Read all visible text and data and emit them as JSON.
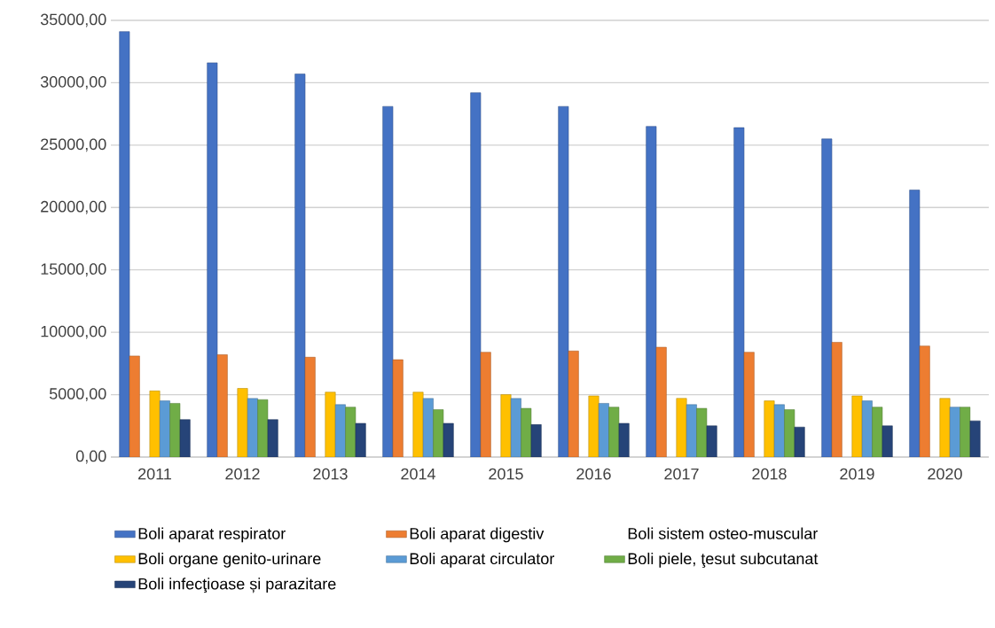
{
  "chart_data": {
    "type": "bar",
    "categories": [
      "2011",
      "2012",
      "2013",
      "2014",
      "2015",
      "2016",
      "2017",
      "2018",
      "2019",
      "2020"
    ],
    "series": [
      {
        "name": "Boli aparat respirator",
        "color": "#4472c4",
        "values": [
          34100,
          31600,
          30700,
          28100,
          29200,
          28100,
          26500,
          26400,
          25500,
          21400
        ]
      },
      {
        "name": "Boli aparat  digestiv",
        "color": "#ed7d31",
        "values": [
          8100,
          8200,
          8000,
          7800,
          8400,
          8500,
          8800,
          8400,
          9200,
          8900
        ]
      },
      {
        "name": "Boli sistem osteo-muscular",
        "values": [
          null,
          null,
          null,
          null,
          null,
          null,
          null,
          null,
          null,
          null
        ]
      },
      {
        "name": "Boli organe genito-urinare",
        "color": "#ffc000",
        "values": [
          5300,
          5500,
          5200,
          5200,
          5000,
          4900,
          4700,
          4500,
          4900,
          4700
        ]
      },
      {
        "name": "Boli aparat circulator",
        "color": "#5b9bd5",
        "values": [
          4500,
          4700,
          4200,
          4700,
          4700,
          4300,
          4200,
          4200,
          4500,
          4000
        ]
      },
      {
        "name": "Boli piele, ţesut subcutanat",
        "color": "#70ad47",
        "values": [
          4300,
          4600,
          4000,
          3800,
          3900,
          4000,
          3900,
          3800,
          4000,
          4000
        ]
      },
      {
        "name": "Boli infecţioase și parazitare",
        "color": "#264478",
        "values": [
          3000,
          3000,
          2700,
          2700,
          2600,
          2700,
          2500,
          2400,
          2500,
          2900
        ]
      }
    ],
    "ylim": [
      0,
      35000
    ],
    "yticks": [
      {
        "value": 0,
        "label": "0,00"
      },
      {
        "value": 5000,
        "label": "5000,00"
      },
      {
        "value": 10000,
        "label": "10000,00"
      },
      {
        "value": 15000,
        "label": "15000,00"
      },
      {
        "value": 20000,
        "label": "20000,00"
      },
      {
        "value": 25000,
        "label": "25000,00"
      },
      {
        "value": 30000,
        "label": "30000,00"
      },
      {
        "value": 35000,
        "label": "35000,00"
      }
    ],
    "grid": "y",
    "legend": "bottom"
  }
}
